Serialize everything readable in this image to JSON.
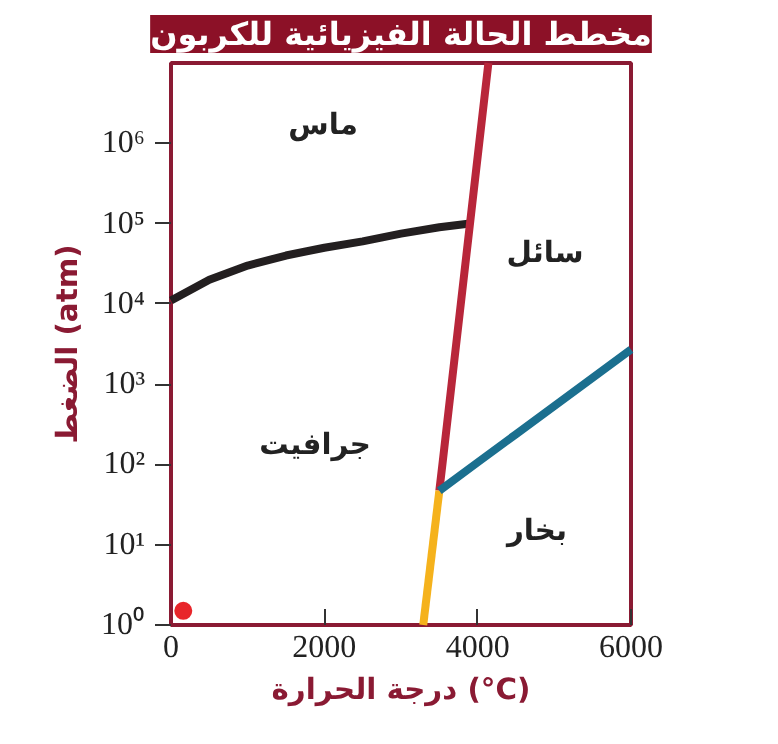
{
  "chart_data": {
    "type": "line",
    "title": "مخطط الحالة الفيزيائية للكربون",
    "xlabel": "درجة الحرارة (°C)",
    "ylabel": "الضغط (atm)",
    "log": "y",
    "xlim": [
      0,
      6000
    ],
    "ylim": [
      1,
      10000000
    ],
    "xticks": [
      0,
      2000,
      4000,
      6000
    ],
    "yticks": [
      {
        "value": 1,
        "label": "10⁰"
      },
      {
        "value": 10,
        "label": "10¹"
      },
      {
        "value": 100,
        "label": "10²"
      },
      {
        "value": 1000,
        "label": "10³"
      },
      {
        "value": 10000,
        "label": "10⁴"
      },
      {
        "value": 100000,
        "label": "10⁵"
      },
      {
        "value": 1000000,
        "label": "10⁶"
      }
    ],
    "series": [
      {
        "color": "#231f20",
        "x": [
          0,
          500,
          1000,
          1500,
          2000,
          2500,
          3000,
          3500,
          3900
        ],
        "values": [
          11000,
          20000,
          30000,
          40000,
          50000,
          60000,
          75000,
          90000,
          100000
        ]
      },
      {
        "color": "#b8263a",
        "x": [
          3500,
          3540,
          3660,
          3780,
          3900,
          4020,
          4140
        ],
        "values": [
          47,
          100,
          1000,
          10000,
          100000,
          1000000,
          10000000
        ]
      },
      {
        "color": "#f5b21c",
        "x": [
          3290,
          3500
        ],
        "values": [
          1,
          47
        ]
      },
      {
        "color": "#1b6f8f",
        "x": [
          3500,
          4000,
          4500,
          5000,
          5500,
          6000
        ],
        "values": [
          47,
          106,
          238,
          533,
          1200,
          2700
        ]
      },
      {
        "type": "scatter",
        "color": "#e8262b",
        "marker": "circle",
        "x": [
          160
        ],
        "values": [
          1.5
        ]
      }
    ],
    "annotations": [
      "ماس",
      "سائل",
      "جرافيت",
      "بخار"
    ]
  }
}
